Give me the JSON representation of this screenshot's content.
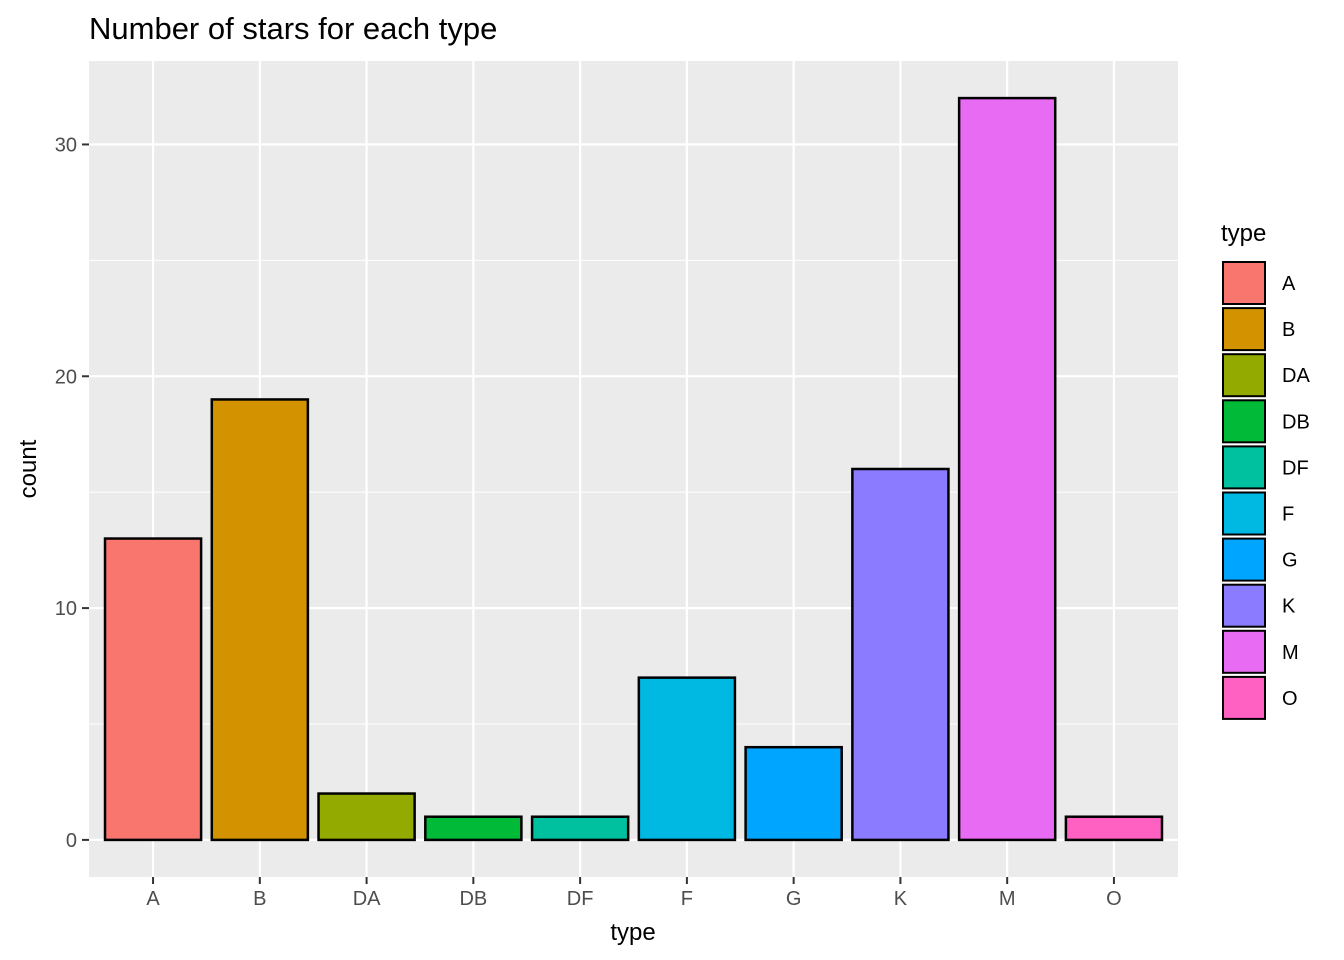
{
  "chart_data": {
    "type": "bar",
    "title": "Number of stars for each type",
    "xlabel": "type",
    "ylabel": "count",
    "categories": [
      "A",
      "B",
      "DA",
      "DB",
      "DF",
      "F",
      "G",
      "K",
      "M",
      "O"
    ],
    "values": [
      13,
      19,
      2,
      1,
      1,
      7,
      4,
      16,
      32,
      1
    ],
    "colors": [
      "#F8766D",
      "#D39200",
      "#93AA00",
      "#00BA38",
      "#00C19F",
      "#00B9E3",
      "#00A5FF",
      "#8B7BFF",
      "#E76BF3",
      "#FF61C3"
    ],
    "ylim": [
      -1.6,
      33.6
    ],
    "yticks": [
      0,
      10,
      20,
      30
    ],
    "grid": true,
    "panel_background": "#EBEBEB",
    "legend": {
      "title": "type",
      "position": "right",
      "entries": [
        "A",
        "B",
        "DA",
        "DB",
        "DF",
        "F",
        "G",
        "K",
        "M",
        "O"
      ]
    }
  }
}
